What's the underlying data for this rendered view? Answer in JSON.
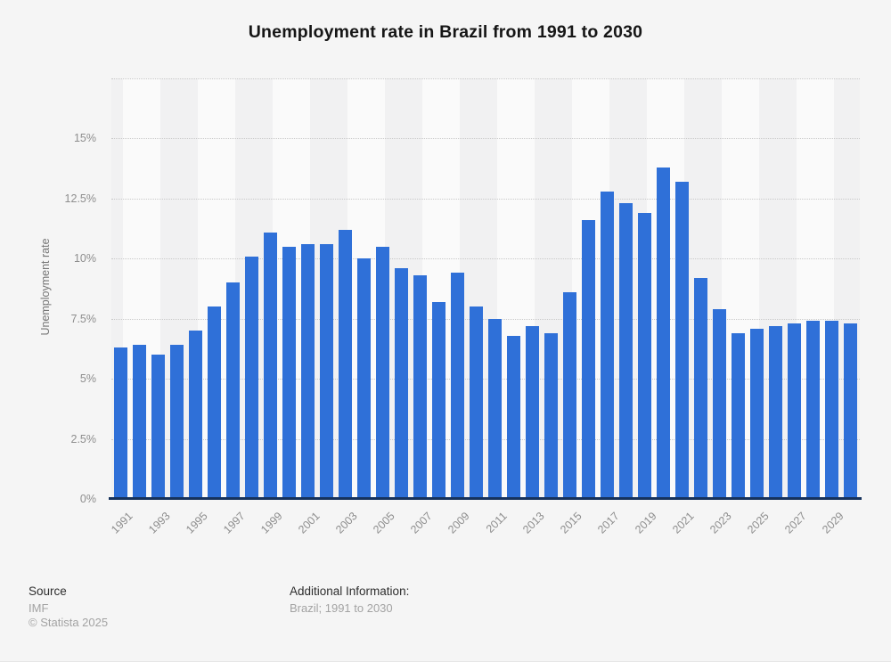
{
  "title": "Unemployment rate in Brazil from 1991 to 2030",
  "chart_data": {
    "type": "bar",
    "title": "Unemployment rate in Brazil from 1991 to 2030",
    "xlabel": "",
    "ylabel": "Unemployment rate",
    "ylim": [
      0,
      17.5
    ],
    "grid": true,
    "legend": false,
    "categories": [
      1991,
      1992,
      1993,
      1994,
      1995,
      1996,
      1997,
      1998,
      1999,
      2000,
      2001,
      2002,
      2003,
      2004,
      2005,
      2006,
      2007,
      2008,
      2009,
      2010,
      2011,
      2012,
      2013,
      2014,
      2015,
      2016,
      2017,
      2018,
      2019,
      2020,
      2021,
      2022,
      2023,
      2024,
      2025,
      2026,
      2027,
      2028,
      2029,
      2030
    ],
    "values": [
      6.3,
      6.4,
      6.0,
      6.4,
      7.0,
      8.0,
      9.0,
      10.1,
      11.1,
      10.5,
      10.6,
      10.6,
      11.2,
      10.0,
      10.5,
      9.6,
      9.3,
      8.2,
      9.4,
      8.0,
      7.5,
      6.8,
      7.2,
      6.9,
      8.6,
      11.6,
      12.8,
      12.3,
      11.9,
      13.8,
      13.2,
      9.2,
      7.9,
      6.9,
      7.1,
      7.2,
      7.3,
      7.4,
      7.4,
      7.3
    ],
    "yticks": [
      {
        "value": 0,
        "label": "0%"
      },
      {
        "value": 2.5,
        "label": "2.5%"
      },
      {
        "value": 5,
        "label": "5%"
      },
      {
        "value": 7.5,
        "label": "7.5%"
      },
      {
        "value": 10,
        "label": "10%"
      },
      {
        "value": 12.5,
        "label": "12.5%"
      },
      {
        "value": 15,
        "label": "15%"
      }
    ],
    "xtick_labels": [
      "1991",
      "1993",
      "1995",
      "1997",
      "1999",
      "2001",
      "2003",
      "2005",
      "2007",
      "2009",
      "2011",
      "2013",
      "2015",
      "2017",
      "2019",
      "2021",
      "2023",
      "2025",
      "2027",
      "2029"
    ]
  },
  "colors": {
    "bar": "#2f70d8",
    "axis_line": "#16325c",
    "page_background": "#f5f5f5"
  },
  "footer": {
    "source_label": "Source",
    "source_value": "IMF",
    "copyright": "© Statista 2025",
    "additional_info_label": "Additional Information:",
    "additional_info_value": "Brazil; 1991 to 2030"
  }
}
